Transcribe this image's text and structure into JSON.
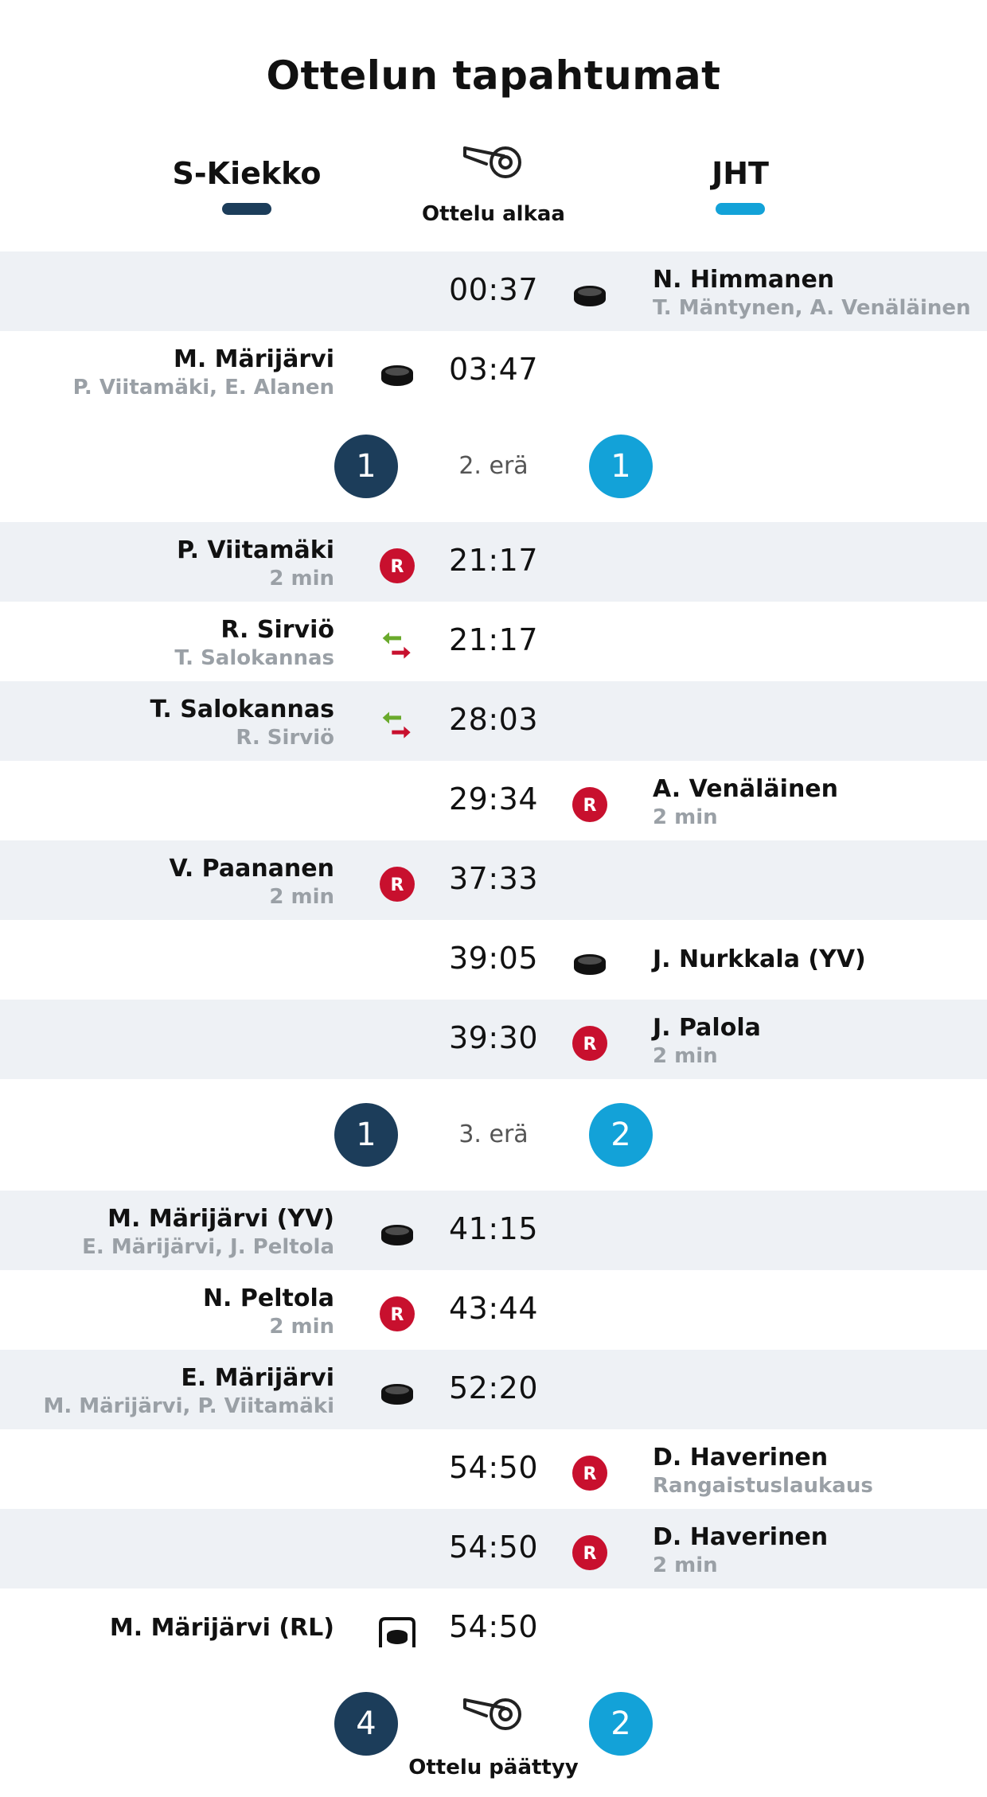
{
  "title": "Ottelun tapahtumat",
  "teams": {
    "home": "S-Kiekko",
    "away": "JHT"
  },
  "colors": {
    "home": "#1c3d5a",
    "away": "#13a2d8",
    "penalty": "#c8102e",
    "sub_in": "#6aaa2c",
    "sub_out": "#c8102e"
  },
  "start_label": "Ottelu alkaa",
  "end_label": "Ottelu päättyy",
  "events": [
    {
      "time": "00:37",
      "side": "away",
      "icon": "puck-icon",
      "name": "N. Himmanen",
      "sub": "T. Mäntynen, A. Venäläinen"
    },
    {
      "time": "03:47",
      "side": "home",
      "icon": "puck-icon",
      "name": "M. Märijärvi",
      "sub": "P. Viitamäki, E. Alanen"
    },
    {
      "time": "21:17",
      "side": "home",
      "icon": "penalty-icon",
      "name": "P. Viitamäki",
      "sub": "2 min"
    },
    {
      "time": "21:17",
      "side": "home",
      "icon": "goalie-change-icon",
      "name": "R. Sirviö",
      "sub": "T. Salokannas"
    },
    {
      "time": "28:03",
      "side": "home",
      "icon": "goalie-change-icon",
      "name": "T. Salokannas",
      "sub": "R. Sirviö"
    },
    {
      "time": "29:34",
      "side": "away",
      "icon": "penalty-icon",
      "name": "A. Venäläinen",
      "sub": "2 min"
    },
    {
      "time": "37:33",
      "side": "home",
      "icon": "penalty-icon",
      "name": "V. Paananen",
      "sub": "2 min"
    },
    {
      "time": "39:05",
      "side": "away",
      "icon": "puck-icon",
      "name": "J. Nurkkala (YV)",
      "sub": ""
    },
    {
      "time": "39:30",
      "side": "away",
      "icon": "penalty-icon",
      "name": "J. Palola",
      "sub": "2 min"
    },
    {
      "time": "41:15",
      "side": "home",
      "icon": "puck-icon",
      "name": "M. Märijärvi (YV)",
      "sub": "E. Märijärvi, J. Peltola"
    },
    {
      "time": "43:44",
      "side": "home",
      "icon": "penalty-icon",
      "name": "N. Peltola",
      "sub": "2 min"
    },
    {
      "time": "52:20",
      "side": "home",
      "icon": "puck-icon",
      "name": "E. Märijärvi",
      "sub": "M. Märijärvi, P. Viitamäki"
    },
    {
      "time": "54:50",
      "side": "away",
      "icon": "penalty-icon",
      "name": "D. Haverinen",
      "sub": "Rangaistuslaukaus"
    },
    {
      "time": "54:50",
      "side": "away",
      "icon": "penalty-icon",
      "name": "D. Haverinen",
      "sub": "2 min"
    },
    {
      "time": "54:50",
      "side": "home",
      "icon": "penalty-shot-goal-icon",
      "name": "M. Märijärvi (RL)",
      "sub": ""
    }
  ],
  "periods": [
    {
      "label": "2. erä",
      "home_score": "1",
      "away_score": "1"
    },
    {
      "label": "3. erä",
      "home_score": "1",
      "away_score": "2"
    }
  ],
  "final": {
    "home_score": "4",
    "away_score": "2"
  }
}
